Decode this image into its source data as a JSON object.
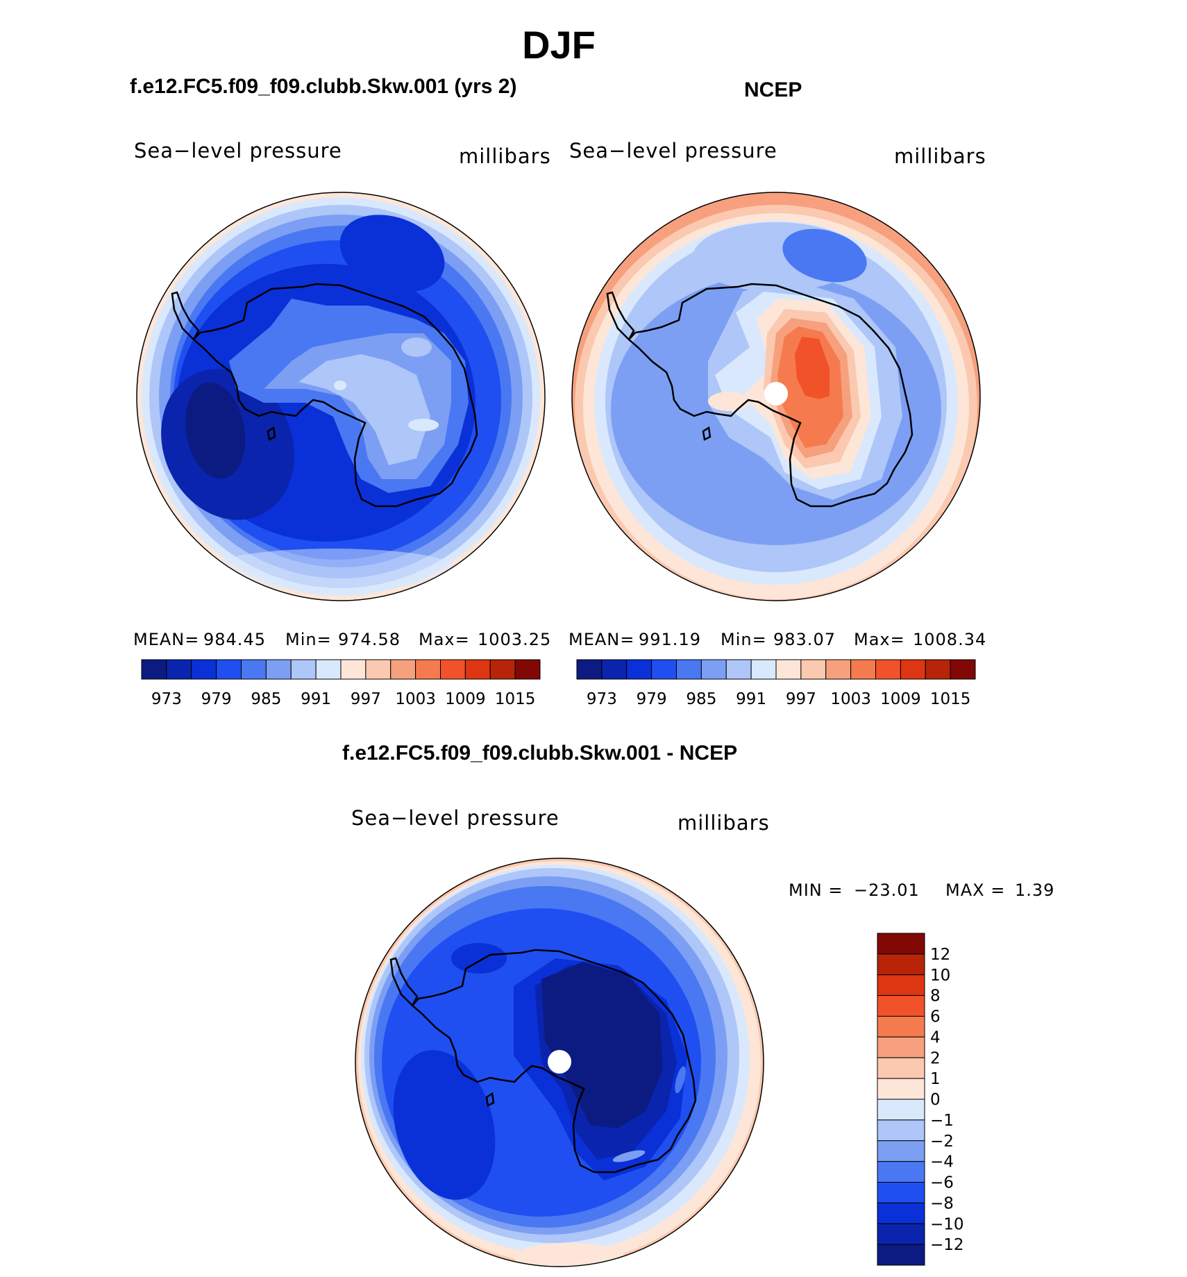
{
  "title": "DJF",
  "panels": {
    "model": {
      "title": "f.e12.FC5.f09_f09.clubb.Skw.001 (yrs 2)",
      "variable": "Sea−level pressure",
      "units": "millibars",
      "stats": {
        "mean_label": "MEAN=",
        "mean": "984.45",
        "min_label": "Min=",
        "min": "974.58",
        "max_label": "Max=",
        "max": "1003.25"
      }
    },
    "obs": {
      "title": "NCEP",
      "variable": "Sea−level pressure",
      "units": "millibars",
      "stats": {
        "mean_label": "MEAN=",
        "mean": "991.19",
        "min_label": "Min=",
        "min": "983.07",
        "max_label": "Max=",
        "max": "1008.34"
      }
    },
    "diff": {
      "title": "f.e12.FC5.f09_f09.clubb.Skw.001 - NCEP",
      "variable": "Sea−level pressure",
      "units": "millibars",
      "minmax": {
        "min_label": "MIN =",
        "min": "−23.01",
        "max_label": "MAX =",
        "max": "1.39"
      }
    }
  },
  "colorbar_abs": {
    "labels": [
      "973",
      "979",
      "985",
      "991",
      "997",
      "1003",
      "1009",
      "1015"
    ],
    "colors": [
      "#0b1b82",
      "#0a24ad",
      "#0a30d8",
      "#1f4ff0",
      "#4a78f2",
      "#7c9ff4",
      "#aec6f8",
      "#d9e8fc",
      "#fde6d8",
      "#fbc9b0",
      "#f7a07e",
      "#f57b4e",
      "#f2522a",
      "#de3512",
      "#b72408",
      "#820806"
    ]
  },
  "colorbar_diff": {
    "labels": [
      "12",
      "10",
      "8",
      "6",
      "4",
      "2",
      "1",
      "0",
      "−1",
      "−2",
      "−4",
      "−6",
      "−8",
      "−10",
      "−12"
    ],
    "colors": [
      "#820806",
      "#b72408",
      "#de3512",
      "#f2522a",
      "#f57b4e",
      "#f7a07e",
      "#fbc9b0",
      "#fde6d8",
      "#d9e8fc",
      "#aec6f8",
      "#7c9ff4",
      "#4a78f2",
      "#1f4ff0",
      "#0a30d8",
      "#0a24ad",
      "#0b1b82"
    ]
  },
  "map": {
    "projection": "south polar stereographic",
    "region": "Antarctica",
    "coastline_color": "#000000",
    "pole_marker_color": "#ffffff"
  }
}
